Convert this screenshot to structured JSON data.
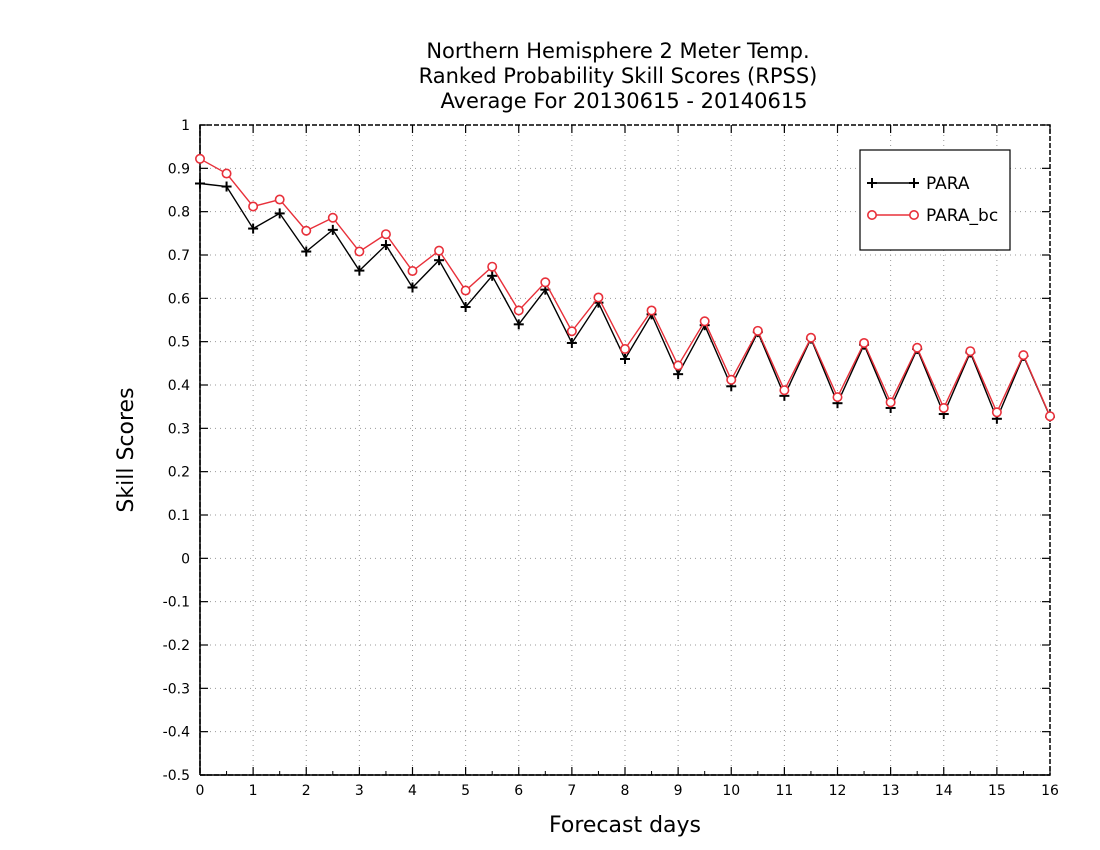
{
  "chart_data": {
    "type": "line",
    "title_lines": [
      "Northern Hemisphere 2 Meter Temp.",
      "Ranked Probability Skill Scores (RPSS)",
      "Average For 20130615 - 20140615"
    ],
    "xlabel": "Forecast days",
    "ylabel": "Skill Scores",
    "xlim": [
      0,
      16
    ],
    "ylim": [
      -0.5,
      1
    ],
    "x_ticks": [
      "0",
      "1",
      "2",
      "3",
      "4",
      "5",
      "6",
      "7",
      "8",
      "9",
      "10",
      "11",
      "12",
      "13",
      "14",
      "15",
      "16"
    ],
    "y_ticks": [
      "1",
      "0.9",
      "0.8",
      "0.7",
      "0.6",
      "0.5",
      "0.4",
      "0.3",
      "0.2",
      "0.1",
      "0",
      "-0.1",
      "-0.2",
      "-0.3",
      "-0.4",
      "-0.5"
    ],
    "grid": true,
    "legend_position": "top-right",
    "x": [
      0,
      0.5,
      1,
      1.5,
      2,
      2.5,
      3,
      3.5,
      4,
      4.5,
      5,
      5.5,
      6,
      6.5,
      7,
      7.5,
      8,
      8.5,
      9,
      9.5,
      10,
      10.5,
      11,
      11.5,
      12,
      12.5,
      13,
      13.5,
      14,
      14.5,
      15,
      15.5,
      16
    ],
    "series": [
      {
        "name": "PARA",
        "color": "#000000",
        "marker": "plus",
        "values": [
          0.865,
          0.858,
          0.761,
          0.796,
          0.708,
          0.758,
          0.664,
          0.723,
          0.625,
          0.688,
          0.58,
          0.652,
          0.54,
          0.62,
          0.497,
          0.59,
          0.46,
          0.563,
          0.425,
          0.538,
          0.397,
          0.522,
          0.375,
          0.507,
          0.358,
          0.493,
          0.347,
          0.483,
          0.333,
          0.475,
          0.322,
          0.467,
          0.327
        ]
      },
      {
        "name": "PARA_bc",
        "color": "#e8303a",
        "marker": "circle",
        "values": [
          0.922,
          0.888,
          0.812,
          0.828,
          0.756,
          0.786,
          0.708,
          0.748,
          0.663,
          0.71,
          0.618,
          0.673,
          0.572,
          0.637,
          0.524,
          0.602,
          0.483,
          0.572,
          0.445,
          0.547,
          0.412,
          0.525,
          0.388,
          0.509,
          0.372,
          0.497,
          0.36,
          0.486,
          0.347,
          0.478,
          0.337,
          0.469,
          0.328
        ]
      }
    ]
  }
}
